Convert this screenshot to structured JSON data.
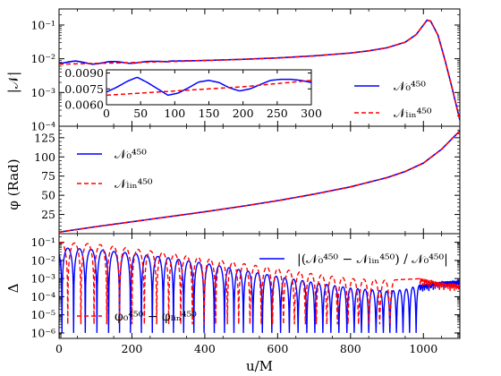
{
  "chart_data": [
    {
      "type": "line",
      "panel": "amplitude",
      "ylabel": "|𝒩|",
      "yscale": "log",
      "ylim": [
        0.0001,
        0.3
      ],
      "xlim": [
        0,
        1100
      ],
      "yticks": [
        "10⁻¹",
        "10⁻²",
        "10⁻³",
        "10⁻⁴"
      ],
      "yticks_vals": [
        0.1,
        0.01,
        0.001,
        0.0001
      ],
      "legend_position": "lower right",
      "series": [
        {
          "name": "𝒩₀⁴⁵⁰",
          "color": "#0000ff",
          "dash": "solid",
          "x": [
            0,
            50,
            100,
            200,
            300,
            400,
            500,
            600,
            700,
            800,
            850,
            900,
            950,
            980,
            1000,
            1010,
            1020,
            1040,
            1060,
            1080,
            1100
          ],
          "y": [
            0.0072,
            0.0083,
            0.0068,
            0.0083,
            0.0085,
            0.0089,
            0.0096,
            0.0106,
            0.0122,
            0.0148,
            0.0172,
            0.0212,
            0.031,
            0.052,
            0.1,
            0.14,
            0.13,
            0.05,
            0.0085,
            0.0012,
            0.00015
          ]
        },
        {
          "name": "𝒩ₗᵢₙ⁴⁵⁰",
          "color": "#ff0000",
          "dash": "dashed",
          "x": [
            0,
            50,
            100,
            200,
            300,
            400,
            500,
            600,
            700,
            800,
            850,
            900,
            950,
            980,
            1000,
            1010,
            1020,
            1040,
            1060,
            1080,
            1100
          ],
          "y": [
            0.0066,
            0.0068,
            0.007,
            0.0076,
            0.0082,
            0.0089,
            0.0096,
            0.0106,
            0.0122,
            0.0148,
            0.0172,
            0.0212,
            0.031,
            0.052,
            0.1,
            0.14,
            0.13,
            0.05,
            0.0085,
            0.0012,
            0.00015
          ]
        }
      ],
      "inset": {
        "xlim": [
          0,
          300
        ],
        "ylim": [
          0.006,
          0.0093
        ],
        "xticks": [
          "0",
          "50",
          "100",
          "150",
          "200",
          "250",
          "300"
        ],
        "yticks": [
          "0.0090",
          "0.0075",
          "0.0060"
        ],
        "yticks_vals": [
          0.009,
          0.0075,
          0.006
        ],
        "series": [
          {
            "name": "𝒩₀⁴⁵⁰",
            "color": "#0000ff",
            "dash": "solid",
            "x": [
              0,
              15,
              30,
              45,
              60,
              75,
              90,
              105,
              120,
              135,
              150,
              165,
              180,
              195,
              210,
              225,
              240,
              255,
              270,
              285,
              300
            ],
            "y": [
              0.0072,
              0.00765,
              0.0082,
              0.0086,
              0.0081,
              0.0075,
              0.0069,
              0.0071,
              0.0076,
              0.00815,
              0.0083,
              0.0081,
              0.0076,
              0.0073,
              0.0075,
              0.0079,
              0.0083,
              0.0084,
              0.0084,
              0.0083,
              0.0081
            ]
          },
          {
            "name": "𝒩ₗᵢₙ⁴⁵⁰",
            "color": "#ff0000",
            "dash": "dashed",
            "x": [
              0,
              50,
              100,
              150,
              200,
              250,
              300
            ],
            "y": [
              0.0069,
              0.0071,
              0.0073,
              0.0075,
              0.0077,
              0.008,
              0.0083
            ]
          }
        ]
      }
    },
    {
      "type": "line",
      "panel": "phase",
      "ylabel": "φ (Rad)",
      "ylim": [
        0,
        140
      ],
      "xlim": [
        0,
        1100
      ],
      "yticks": [
        "125",
        "100",
        "75",
        "50",
        "25"
      ],
      "yticks_vals": [
        125,
        100,
        75,
        50,
        25
      ],
      "legend_position": "upper left",
      "series": [
        {
          "name": "𝒩₀⁴⁵⁰",
          "color": "#0000ff",
          "dash": "solid",
          "x": [
            0,
            100,
            200,
            300,
            400,
            500,
            600,
            700,
            800,
            900,
            950,
            1000,
            1050,
            1100
          ],
          "y": [
            2,
            9,
            15.5,
            22,
            28.5,
            35.5,
            43,
            51.5,
            61,
            73,
            81,
            92,
            110,
            134
          ]
        },
        {
          "name": "𝒩ₗᵢₙ⁴⁵⁰",
          "color": "#ff0000",
          "dash": "dashed",
          "x": [
            0,
            100,
            200,
            300,
            400,
            500,
            600,
            700,
            800,
            900,
            950,
            1000,
            1050,
            1100
          ],
          "y": [
            2,
            9,
            15.5,
            22,
            28.5,
            35.5,
            43,
            51.5,
            61,
            73,
            81,
            92,
            110,
            134
          ]
        }
      ]
    },
    {
      "type": "line",
      "panel": "difference",
      "ylabel": "Δ",
      "xlabel": "u/M",
      "yscale": "log",
      "ylim": [
        5e-07,
        0.3
      ],
      "xlim": [
        0,
        1100
      ],
      "xticks": [
        "0",
        "200",
        "400",
        "600",
        "800",
        "1000"
      ],
      "xticks_vals": [
        0,
        200,
        400,
        600,
        800,
        1000
      ],
      "yticks": [
        "10⁻¹",
        "10⁻²",
        "10⁻³",
        "10⁻⁴",
        "10⁻⁵",
        "10⁻⁶"
      ],
      "yticks_vals": [
        0.1,
        0.01,
        0.001,
        0.0001,
        1e-05,
        1e-06
      ],
      "legend_position": "right",
      "series": [
        {
          "name": "|(𝒩₀⁴⁵⁰ − 𝒩ₗᵢₙ⁴⁵⁰) / 𝒩₀⁴⁵⁰|",
          "color": "#0000ff",
          "dash": "solid",
          "envelope": {
            "x": [
              0,
              100,
              200,
              300,
              400,
              500,
              600,
              700,
              800,
              900,
              950,
              1000,
              1050,
              1100
            ],
            "y": [
              0.05,
              0.04,
              0.025,
              0.014,
              0.007,
              0.003,
              0.0013,
              0.0006,
              0.0003,
              0.0002,
              0.00025,
              0.0005,
              0.0007,
              0.0008
            ]
          },
          "dips_x": [
            8,
            40,
            72,
            104,
            136,
            166,
            196,
            226,
            256,
            286,
            314,
            342,
            370,
            398,
            426,
            454,
            480,
            506,
            532,
            558,
            584,
            608,
            632,
            656,
            680,
            702,
            724,
            746,
            768,
            790,
            810,
            830,
            850,
            870,
            890,
            908,
            926,
            944,
            962,
            980
          ],
          "dip_depth": 1e-06
        },
        {
          "name": "φ₀⁴⁵⁰ − φₗᵢₙ⁴⁵⁰",
          "color": "#ff0000",
          "dash": "dashed",
          "envelope": {
            "x": [
              0,
              100,
              200,
              300,
              400,
              500,
              600,
              700,
              800,
              900,
              950,
              1000,
              1050,
              1100
            ],
            "y": [
              0.1,
              0.08,
              0.045,
              0.025,
              0.013,
              0.007,
              0.0035,
              0.0018,
              0.001,
              0.0008,
              0.0009,
              0.001,
              0.0006,
              0.0005
            ]
          },
          "dips_x": [
            24,
            60,
            96,
            131,
            166,
            200,
            234,
            268,
            301,
            334,
            366,
            398,
            430,
            462,
            493,
            524,
            555,
            586,
            616,
            646,
            676,
            706,
            735,
            764,
            793,
            822,
            851,
            880,
            908
          ],
          "dip_depth": 3e-06
        }
      ]
    }
  ],
  "xlabel": "u/M"
}
